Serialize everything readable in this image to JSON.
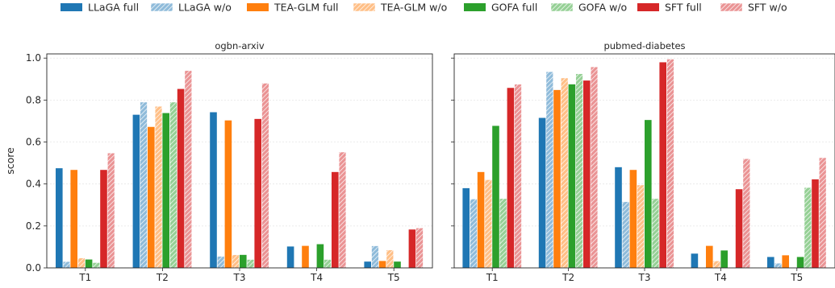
{
  "legend": {
    "placement": "top-center",
    "entries": [
      {
        "label": "LLaGA full",
        "color": "#1f77b4",
        "style": "solid"
      },
      {
        "label": "LLaGA w/o",
        "color": "#1f77b4",
        "style": "hatched"
      },
      {
        "label": "TEA-GLM full",
        "color": "#ff7f0e",
        "style": "solid"
      },
      {
        "label": "TEA-GLM w/o",
        "color": "#ff7f0e",
        "style": "hatched"
      },
      {
        "label": "GOFA full",
        "color": "#2ca02c",
        "style": "solid"
      },
      {
        "label": "GOFA w/o",
        "color": "#2ca02c",
        "style": "hatched"
      },
      {
        "label": "SFT full",
        "color": "#d62728",
        "style": "solid"
      },
      {
        "label": "SFT w/o",
        "color": "#d62728",
        "style": "hatched"
      }
    ]
  },
  "chart_data": [
    {
      "type": "bar",
      "title": "ogbn-arxiv",
      "ylabel": "score",
      "xlabel": "",
      "ylim": [
        0,
        1.02
      ],
      "yticks": [
        "0.0",
        "0.2",
        "0.4",
        "0.6",
        "0.8",
        "1.0"
      ],
      "ytick_values": [
        0,
        0.2,
        0.4,
        0.6,
        0.8,
        1.0
      ],
      "grid": "horizontal",
      "categories": [
        "T1",
        "T2",
        "T3",
        "T4",
        "T5"
      ],
      "series": [
        {
          "name": "LLaGA full",
          "values": [
            0.475,
            0.73,
            0.742,
            0.102,
            0.03
          ]
        },
        {
          "name": "LLaGA w/o",
          "values": [
            0.03,
            0.79,
            0.055,
            0.0,
            0.105
          ]
        },
        {
          "name": "TEA-GLM full",
          "values": [
            0.467,
            0.672,
            0.703,
            0.105,
            0.033
          ]
        },
        {
          "name": "TEA-GLM w/o",
          "values": [
            0.047,
            0.77,
            0.062,
            0.0,
            0.085
          ]
        },
        {
          "name": "GOFA full",
          "values": [
            0.04,
            0.738,
            0.062,
            0.113,
            0.03
          ]
        },
        {
          "name": "GOFA w/o",
          "values": [
            0.025,
            0.79,
            0.04,
            0.04,
            0.0
          ]
        },
        {
          "name": "SFT full",
          "values": [
            0.467,
            0.853,
            0.71,
            0.457,
            0.183
          ]
        },
        {
          "name": "SFT w/o",
          "values": [
            0.547,
            0.94,
            0.88,
            0.552,
            0.19
          ]
        }
      ]
    },
    {
      "type": "bar",
      "title": "pubmed-diabetes",
      "ylabel": "",
      "xlabel": "",
      "ylim": [
        0,
        1.02
      ],
      "yticks": [],
      "grid": "horizontal",
      "categories": [
        "T1",
        "T2",
        "T3",
        "T4",
        "T5"
      ],
      "series": [
        {
          "name": "LLaGA full",
          "values": [
            0.38,
            0.715,
            0.48,
            0.068,
            0.052
          ]
        },
        {
          "name": "LLaGA w/o",
          "values": [
            0.328,
            0.935,
            0.315,
            0.0,
            0.022
          ]
        },
        {
          "name": "TEA-GLM full",
          "values": [
            0.457,
            0.848,
            0.467,
            0.105,
            0.06
          ]
        },
        {
          "name": "TEA-GLM w/o",
          "values": [
            0.42,
            0.905,
            0.395,
            0.033,
            0.0
          ]
        },
        {
          "name": "GOFA full",
          "values": [
            0.677,
            0.875,
            0.705,
            0.083,
            0.052
          ]
        },
        {
          "name": "GOFA w/o",
          "values": [
            0.33,
            0.925,
            0.33,
            0.0,
            0.383
          ]
        },
        {
          "name": "SFT full",
          "values": [
            0.858,
            0.893,
            0.98,
            0.375,
            0.422
          ]
        },
        {
          "name": "SFT w/o",
          "values": [
            0.875,
            0.958,
            0.995,
            0.52,
            0.525
          ]
        }
      ]
    }
  ]
}
